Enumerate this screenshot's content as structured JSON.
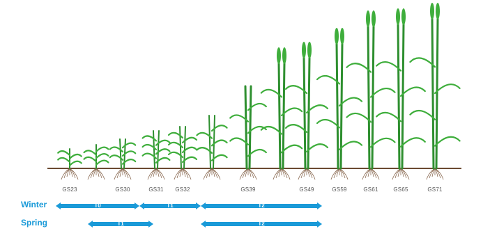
{
  "growth_stages": [
    "GS23",
    "GS30",
    "GS31",
    "GS32",
    "GS39",
    "GS49",
    "GS59",
    "GS61",
    "GS65",
    "GS71"
  ],
  "timing_rows": [
    {
      "label": "Winter",
      "segments": [
        {
          "label": "T0"
        },
        {
          "label": "T1"
        },
        {
          "label": "T2"
        }
      ]
    },
    {
      "label": "Spring",
      "segments": [
        {
          "label": "T1"
        },
        {
          "label": "T2"
        }
      ]
    }
  ],
  "colors": {
    "arrow": "#1a9ad8",
    "leaf": "#3fae3c",
    "leaf_dark": "#2e8f2f",
    "soil": "#6b4a32",
    "root": "#8a6a52"
  }
}
